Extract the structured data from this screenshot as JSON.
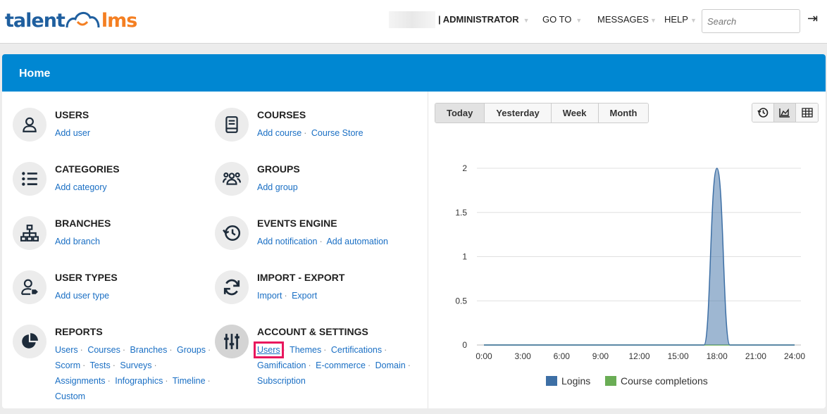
{
  "header": {
    "logo_left": "talent",
    "logo_right": "lms",
    "role": "| ADMINISTRATOR",
    "goto": "GO TO",
    "messages": "MESSAGES",
    "help": "HELP",
    "search_placeholder": "Search"
  },
  "page": {
    "title": "Home"
  },
  "items": [
    {
      "title": "USERS",
      "icon": "user-icon",
      "links": [
        "Add user"
      ]
    },
    {
      "title": "COURSES",
      "icon": "book-icon",
      "links": [
        "Add course",
        "Course Store"
      ]
    },
    {
      "title": "CATEGORIES",
      "icon": "list-icon",
      "links": [
        "Add category"
      ]
    },
    {
      "title": "GROUPS",
      "icon": "group-icon",
      "links": [
        "Add group"
      ]
    },
    {
      "title": "BRANCHES",
      "icon": "sitemap-icon",
      "links": [
        "Add branch"
      ]
    },
    {
      "title": "EVENTS ENGINE",
      "icon": "history-icon",
      "links": [
        "Add notification",
        "Add automation"
      ]
    },
    {
      "title": "USER TYPES",
      "icon": "user-tag-icon",
      "links": [
        "Add user type"
      ]
    },
    {
      "title": "IMPORT - EXPORT",
      "icon": "sync-icon",
      "links": [
        "Import",
        "Export"
      ]
    },
    {
      "title": "REPORTS",
      "icon": "pie-chart-icon",
      "links": [
        "Users",
        "Courses",
        "Branches",
        "Groups",
        "Scorm",
        "Tests",
        "Surveys",
        "Assignments",
        "Infographics",
        "Timeline",
        "Custom"
      ]
    },
    {
      "title": "ACCOUNT & SETTINGS",
      "icon": "sliders-icon",
      "links": [
        "Users",
        "Themes",
        "Certifications",
        "Gamification",
        "E-commerce",
        "Domain",
        "Subscription"
      ]
    }
  ],
  "chart_tabs": [
    "Today",
    "Yesterday",
    "Week",
    "Month"
  ],
  "active_tab": "Today",
  "chart_data": {
    "type": "area",
    "x": [
      "0:00",
      "1:00",
      "2:00",
      "3:00",
      "4:00",
      "5:00",
      "6:00",
      "7:00",
      "8:00",
      "9:00",
      "10:00",
      "11:00",
      "12:00",
      "13:00",
      "14:00",
      "15:00",
      "16:00",
      "17:00",
      "18:00",
      "19:00",
      "20:00",
      "21:00",
      "22:00",
      "23:00",
      "24:00"
    ],
    "xticks": [
      "0:00",
      "3:00",
      "6:00",
      "9:00",
      "12:00",
      "15:00",
      "18:00",
      "21:00",
      "24:00"
    ],
    "yticks": [
      "0",
      "0.5",
      "1",
      "1.5",
      "2"
    ],
    "ylim": [
      0,
      2
    ],
    "grid": true,
    "legend": "bottom",
    "series": [
      {
        "name": "Logins",
        "color": "#3d6fa5",
        "values": [
          0,
          0,
          0,
          0,
          0,
          0,
          0,
          0,
          0,
          0,
          0,
          0,
          0,
          0,
          0,
          0,
          0,
          0,
          2,
          0,
          0,
          0,
          0,
          0,
          0
        ]
      },
      {
        "name": "Course completions",
        "color": "#6aad55",
        "values": [
          0,
          0,
          0,
          0,
          0,
          0,
          0,
          0,
          0,
          0,
          0,
          0,
          0,
          0,
          0,
          0,
          0,
          0,
          0,
          0,
          0,
          0,
          0,
          0,
          0
        ]
      }
    ]
  }
}
